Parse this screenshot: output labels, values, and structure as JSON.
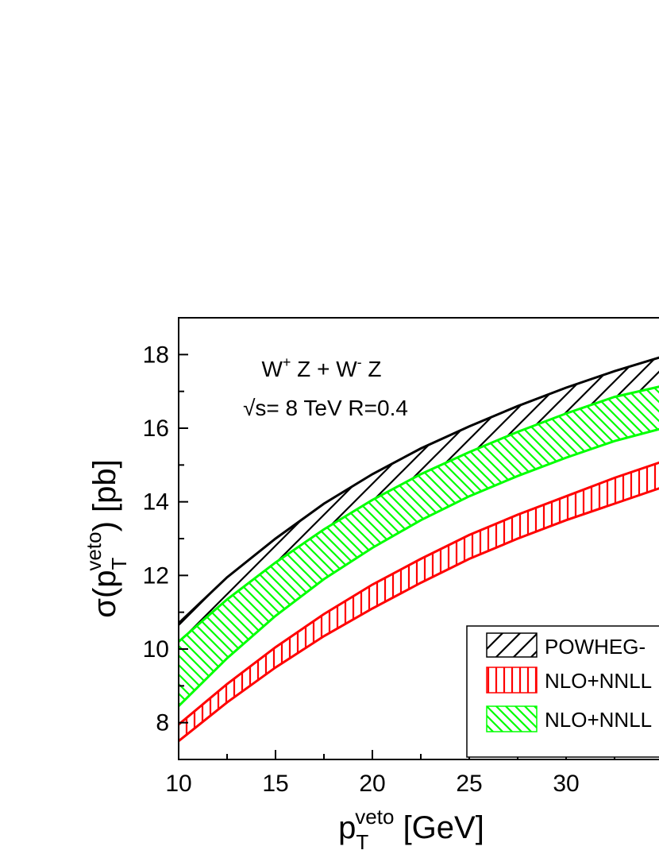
{
  "chart_data": {
    "type": "area",
    "xlabel": "p_T^veto [GeV]",
    "ylabel": "σ(p_T^veto) [pb]",
    "xlim": [
      10,
      35
    ],
    "ylim": [
      7,
      19
    ],
    "xticks": [
      10,
      15,
      20,
      25,
      30
    ],
    "yticks": [
      8,
      10,
      12,
      14,
      16,
      18
    ],
    "grid": false,
    "legend_position": "lower-right",
    "annotation_line1": "W+ Z + W- Z",
    "annotation_line2": "√s= 8 TeV R=0.4",
    "x": [
      10,
      12.5,
      15,
      17.5,
      20,
      22.5,
      25,
      27.5,
      30,
      32.5,
      35
    ],
    "series": [
      {
        "name": "POWHEG-",
        "color": "#000000",
        "pattern": "diagonal-hatch",
        "upper": [
          10.7,
          11.95,
          13.0,
          13.95,
          14.75,
          15.45,
          16.05,
          16.6,
          17.1,
          17.55,
          17.95
        ],
        "lower": [
          8.85,
          10.3,
          11.5,
          12.55,
          13.45,
          14.2,
          14.85,
          15.4,
          15.85,
          16.25,
          16.65
        ]
      },
      {
        "name": "NLO+NNLL",
        "color": "#ff0000",
        "pattern": "vertical-hatch",
        "upper": [
          7.95,
          9.05,
          10.05,
          10.95,
          11.75,
          12.45,
          13.1,
          13.65,
          14.15,
          14.65,
          15.1
        ],
        "lower": [
          7.5,
          8.55,
          9.5,
          10.35,
          11.1,
          11.8,
          12.45,
          13.0,
          13.5,
          13.95,
          14.4
        ]
      },
      {
        "name": "NLO+NNLL",
        "color": "#00ff00",
        "pattern": "diagonal-hatch-reverse",
        "upper": [
          10.2,
          11.35,
          12.35,
          13.25,
          14.05,
          14.75,
          15.35,
          15.9,
          16.4,
          16.85,
          17.15
        ],
        "lower": [
          8.45,
          9.75,
          10.9,
          11.9,
          12.75,
          13.5,
          14.15,
          14.7,
          15.2,
          15.65,
          16.0
        ]
      }
    ]
  }
}
